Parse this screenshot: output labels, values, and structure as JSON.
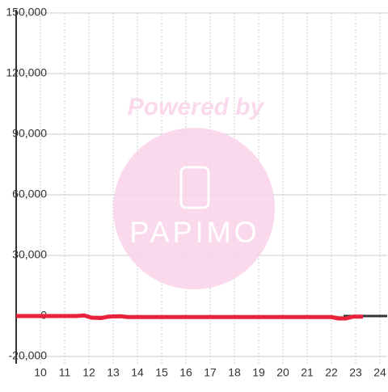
{
  "chart_data": {
    "type": "line",
    "xlim": [
      9,
      24.3
    ],
    "ylim": [
      -20000,
      150000
    ],
    "xticks": [
      10,
      11,
      12,
      13,
      14,
      15,
      16,
      17,
      18,
      19,
      20,
      21,
      22,
      23,
      24
    ],
    "yticks": [
      {
        "value": -20000,
        "label": "-20,000"
      },
      0,
      {
        "value": 30000,
        "label": "30,000"
      },
      {
        "value": 60000,
        "label": "60,000"
      },
      {
        "value": 90000,
        "label": "90,000"
      },
      {
        "value": 120000,
        "label": "120,000"
      },
      {
        "value": 150000,
        "label": "150,000"
      }
    ],
    "grid": true,
    "series": [
      {
        "color": "#e8223a",
        "x": [
          9,
          11.5,
          11.8,
          12.1,
          12.5,
          12.8,
          13.3,
          13.6,
          15,
          20,
          22,
          22.3,
          22.6,
          22.9,
          23.3
        ],
        "values": [
          0,
          0,
          300,
          -800,
          -1000,
          -300,
          -100,
          -500,
          -500,
          -500,
          -500,
          -1200,
          -1200,
          -300,
          -300
        ]
      },
      {
        "color": "#333333",
        "x": [
          22.5,
          24.3
        ],
        "values": [
          0,
          0
        ]
      }
    ]
  },
  "watermark": {
    "line1": "Powered by",
    "line2": "PAPIMO"
  }
}
